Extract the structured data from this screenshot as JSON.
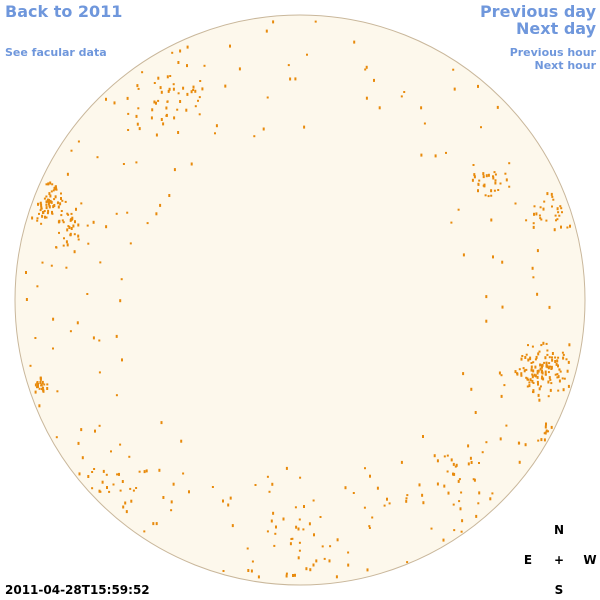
{
  "nav": {
    "back": "Back to 2011",
    "facular": "See facular data",
    "previous_day": "Previous day",
    "next_day": "Next day",
    "previous_hour": "Previous hour",
    "next_hour": "Next hour"
  },
  "timestamp": "2011-04-28T15:59:52",
  "compass": {
    "north": "N",
    "east": "E",
    "center": "+",
    "west": "W",
    "south": "S"
  }
}
